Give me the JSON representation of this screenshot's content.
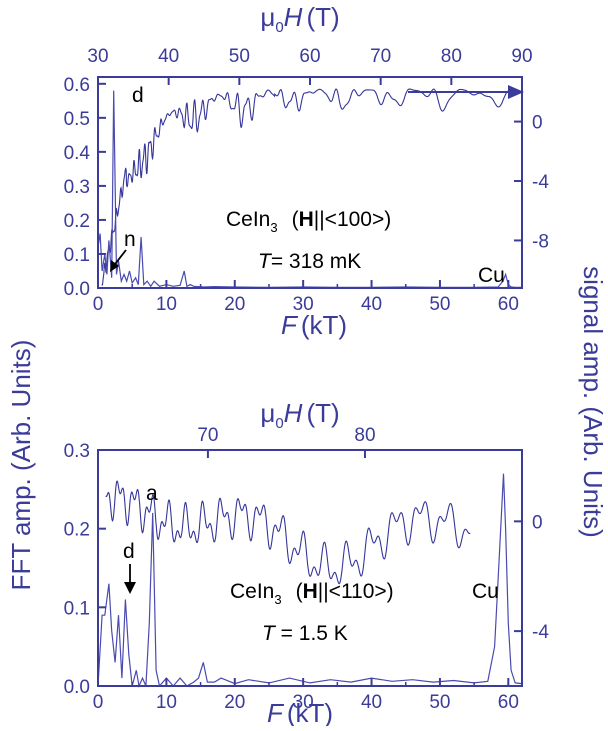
{
  "colors": {
    "axis": "#3b3b9a",
    "fft_line": "#4a4ab0",
    "signal_line": "#35359a",
    "annotation": "#000000"
  },
  "shared": {
    "ylabel_left": "FFT amp. (Arb. Units)",
    "ylabel_right": "signal amp. (Arb. Units)"
  },
  "chart_data": [
    {
      "type": "line",
      "panel": "top",
      "x_axis": {
        "label": "F",
        "unit": "(kT)",
        "range": [
          0,
          62
        ],
        "ticks": [
          0,
          10,
          20,
          30,
          40,
          50,
          60
        ]
      },
      "y_axis_left": {
        "range": [
          0,
          0.62
        ],
        "ticks": [
          0.0,
          0.1,
          0.2,
          0.3,
          0.4,
          0.5,
          0.6
        ],
        "tick_labels": [
          "0.0",
          "0.1",
          "0.2",
          "0.3",
          "0.4",
          "0.5",
          "0.6"
        ]
      },
      "y_axis_right": {
        "range": [
          -11.2,
          3.0
        ],
        "ticks": [
          0,
          -4,
          -8
        ],
        "tick_labels": [
          "0",
          "-4",
          "-8"
        ]
      },
      "x_axis_top": {
        "label_mu": "μ",
        "label_sub": "0",
        "label_H": "H",
        "label_unit": "(T)",
        "range": [
          30,
          90
        ],
        "ticks": [
          30,
          40,
          50,
          60,
          70,
          80,
          90
        ],
        "tick_labels": [
          "30",
          "40",
          "50",
          "60",
          "70",
          "80",
          "90"
        ]
      },
      "grid": false,
      "series": [
        {
          "role": "fft",
          "x": [
            0.0,
            0.3,
            0.6,
            1.0,
            1.3,
            1.6,
            2.0,
            2.3,
            2.7,
            3.0,
            3.4,
            3.8,
            4.2,
            4.6,
            5.0,
            5.5,
            5.9,
            6.3,
            6.7,
            7.2,
            7.7,
            8.2,
            9.0,
            10.0,
            11.0,
            12.0,
            12.6,
            13.0,
            13.5,
            14.0,
            15.5,
            17.0,
            20.0,
            25.0,
            30.0,
            35.0,
            40.0,
            45.0,
            50.0,
            55.0,
            58.5,
            59.2,
            59.6,
            60.0,
            60.4,
            61.0,
            62.0
          ],
          "y": [
            0.12,
            0.16,
            0.05,
            0.1,
            0.04,
            0.14,
            0.03,
            0.58,
            0.04,
            0.08,
            0.02,
            0.04,
            0.02,
            0.05,
            0.015,
            0.03,
            0.01,
            0.15,
            0.01,
            0.02,
            0.005,
            0.02,
            0.005,
            0.01,
            0.005,
            0.008,
            0.05,
            0.005,
            0.01,
            0.005,
            0.003,
            0.004,
            0.003,
            0.002,
            0.003,
            0.002,
            0.002,
            0.003,
            0.002,
            0.002,
            0.003,
            0.02,
            0.04,
            0.01,
            0.003,
            0.002,
            0.002
          ]
        },
        {
          "role": "signal",
          "field_range": [
            30.5,
            88
          ],
          "envelope_lo": -11,
          "envelope_hi": 2.2,
          "oscillation": "quantum oscillations vs field"
        }
      ],
      "annotations": {
        "d": "d",
        "n": "n",
        "compound": "CeIn",
        "compound_sub": "3",
        "field_open": "(",
        "field_H": "H",
        "field_dir": "||<100>)",
        "temp_T": "T",
        "temp_value": "= 318 mK",
        "cu": "Cu"
      }
    },
    {
      "type": "line",
      "panel": "bottom",
      "x_axis": {
        "label": "F",
        "unit": "(kT)",
        "range": [
          0,
          62
        ],
        "ticks": [
          0,
          10,
          20,
          30,
          40,
          50,
          60
        ]
      },
      "y_axis_left": {
        "range": [
          0,
          0.3
        ],
        "ticks": [
          0.0,
          0.1,
          0.2,
          0.3
        ],
        "tick_labels": [
          "0.0",
          "0.1",
          "0.2",
          "0.3"
        ]
      },
      "y_axis_right": {
        "range": [
          -6.0,
          2.6
        ],
        "ticks": [
          0,
          -4
        ],
        "tick_labels": [
          "0",
          "-4"
        ]
      },
      "x_axis_top": {
        "label_mu": "μ",
        "label_sub": "0",
        "label_H": "H",
        "label_unit": "(T)",
        "range": [
          63,
          90
        ],
        "ticks": [
          70,
          80
        ],
        "tick_labels": [
          "70",
          "80"
        ]
      },
      "grid": false,
      "series": [
        {
          "role": "fft",
          "x": [
            0.0,
            0.6,
            1.0,
            1.6,
            2.0,
            2.5,
            3.0,
            3.5,
            4.0,
            4.5,
            5.0,
            5.6,
            6.0,
            6.5,
            7.0,
            7.5,
            8.0,
            8.5,
            9.0,
            10.0,
            11.0,
            12.0,
            13.0,
            14.0,
            14.7,
            15.4,
            16.0,
            17.0,
            18.0,
            20.0,
            22.0,
            25.0,
            28.0,
            31.0,
            34.0,
            37.0,
            40.0,
            43.0,
            46.0,
            49.0,
            52.0,
            55.0,
            57.0,
            58.0,
            58.6,
            59.0,
            59.3,
            59.6,
            60.0,
            60.4,
            61.0,
            62.0
          ],
          "y": [
            0.0,
            0.09,
            0.09,
            0.13,
            0.07,
            0.03,
            0.09,
            0.01,
            0.11,
            0.04,
            0.0,
            0.02,
            0.0,
            0.01,
            0.0,
            0.08,
            0.22,
            0.02,
            0.0,
            0.01,
            0.0,
            0.01,
            0.0,
            0.005,
            0.01,
            0.03,
            0.005,
            0.005,
            0.01,
            0.003,
            0.008,
            0.004,
            0.01,
            0.004,
            0.008,
            0.005,
            0.01,
            0.006,
            0.008,
            0.005,
            0.007,
            0.004,
            0.006,
            0.05,
            0.15,
            0.22,
            0.27,
            0.2,
            0.08,
            0.02,
            0.004,
            0.003
          ]
        },
        {
          "role": "signal",
          "field_range": [
            63.5,
            86.7
          ],
          "envelope_lo": -2.4,
          "envelope_hi": 1.9,
          "oscillation": "quantum oscillations vs field"
        }
      ],
      "annotations": {
        "a": "a",
        "d": "d",
        "compound": "CeIn",
        "compound_sub": "3",
        "field_open": "(",
        "field_H": "H",
        "field_dir": "||<110>)",
        "temp_T": "T",
        "temp_value": " = 1.5 K",
        "cu": "Cu"
      }
    }
  ]
}
